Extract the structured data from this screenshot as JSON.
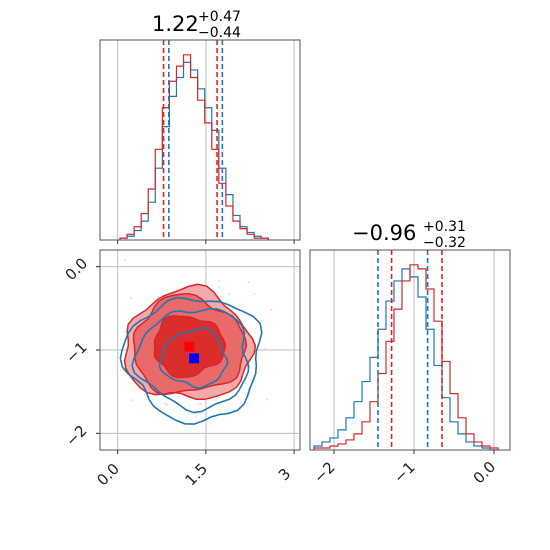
{
  "chart_data": [
    {
      "type": "histogram",
      "panel": "top-left",
      "title": {
        "median": "1.22",
        "plus": "+0.47",
        "minus": "−0.44"
      },
      "xlim": [
        -0.3,
        3.1
      ],
      "x_ticks": [
        0.0,
        1.5,
        3.0
      ],
      "series": [
        {
          "name": "",
          "color": "#1f77b4",
          "quantiles": [
            0.87,
            1.78
          ],
          "bin_centers": [
            0.1,
            0.22,
            0.34,
            0.46,
            0.58,
            0.7,
            0.82,
            0.94,
            1.06,
            1.18,
            1.3,
            1.42,
            1.54,
            1.66,
            1.78,
            1.9,
            2.02,
            2.14,
            2.26,
            2.38,
            2.5
          ],
          "counts": [
            1,
            2,
            5,
            10,
            20,
            38,
            60,
            76,
            86,
            94,
            90,
            80,
            70,
            58,
            38,
            24,
            13,
            7,
            4,
            2,
            1
          ]
        },
        {
          "name": "",
          "color": "#d62728",
          "quantiles": [
            0.78,
            1.69
          ],
          "bin_centers": [
            0.1,
            0.22,
            0.34,
            0.46,
            0.58,
            0.7,
            0.82,
            0.94,
            1.06,
            1.18,
            1.3,
            1.42,
            1.54,
            1.66,
            1.78,
            1.9,
            2.02,
            2.14,
            2.26,
            2.38,
            2.5
          ],
          "counts": [
            1,
            3,
            7,
            14,
            27,
            48,
            70,
            84,
            92,
            98,
            86,
            74,
            62,
            48,
            30,
            18,
            10,
            6,
            3,
            1,
            1
          ]
        }
      ]
    },
    {
      "type": "histogram",
      "panel": "bottom-right",
      "title": {
        "median": "−0.96",
        "plus": "+0.31",
        "minus": "−0.32"
      },
      "xlim": [
        -2.3,
        0.2
      ],
      "x_ticks": [
        -2,
        -1,
        0
      ],
      "series": [
        {
          "name": "",
          "color": "#1f77b4",
          "quantiles": [
            -1.45,
            -0.83
          ],
          "bin_centers": [
            -2.2,
            -2.1,
            -2.0,
            -1.9,
            -1.8,
            -1.7,
            -1.6,
            -1.5,
            -1.4,
            -1.3,
            -1.2,
            -1.1,
            -1.0,
            -0.9,
            -0.8,
            -0.7,
            -0.6,
            -0.5,
            -0.4,
            -0.3,
            -0.2,
            -0.1,
            0.0
          ],
          "counts": [
            2,
            4,
            6,
            10,
            16,
            24,
            34,
            46,
            60,
            74,
            84,
            90,
            86,
            76,
            60,
            42,
            26,
            14,
            8,
            4,
            2,
            1,
            0
          ]
        },
        {
          "name": "",
          "color": "#d62728",
          "quantiles": [
            -1.28,
            -0.65
          ],
          "bin_centers": [
            -2.2,
            -2.1,
            -2.0,
            -1.9,
            -1.8,
            -1.7,
            -1.6,
            -1.5,
            -1.4,
            -1.3,
            -1.2,
            -1.1,
            -1.0,
            -0.9,
            -0.8,
            -0.7,
            -0.6,
            -0.5,
            -0.4,
            -0.3,
            -0.2,
            -0.1,
            0.0
          ],
          "counts": [
            1,
            1,
            2,
            3,
            5,
            8,
            14,
            24,
            38,
            54,
            70,
            84,
            92,
            90,
            80,
            64,
            44,
            28,
            16,
            8,
            4,
            2,
            1
          ]
        }
      ]
    },
    {
      "type": "scatter",
      "panel": "bottom-left",
      "xlim": [
        -0.3,
        3.1
      ],
      "ylim": [
        -2.2,
        0.2
      ],
      "x_ticks": [
        0.0,
        1.5,
        3.0
      ],
      "y_ticks": [
        0,
        -1,
        -2
      ],
      "grid": true,
      "series": [
        {
          "name": "",
          "color": "#1f77b4",
          "center": [
            1.3,
            -1.1
          ],
          "contour_radii": [
            [
              0.55,
              0.34
            ],
            [
              0.95,
              0.6
            ],
            [
              1.15,
              0.74
            ]
          ]
        },
        {
          "name": "",
          "color": "#d62728",
          "center": [
            1.2,
            -0.95
          ],
          "contour_radii": [
            [
              0.6,
              0.36
            ],
            [
              0.95,
              0.58
            ],
            [
              1.08,
              0.66
            ]
          ]
        }
      ],
      "markers": [
        {
          "color": "#ff0000",
          "x": 1.22,
          "y": -0.96
        },
        {
          "color": "#0000ff",
          "x": 1.3,
          "y": -1.1
        }
      ]
    }
  ]
}
